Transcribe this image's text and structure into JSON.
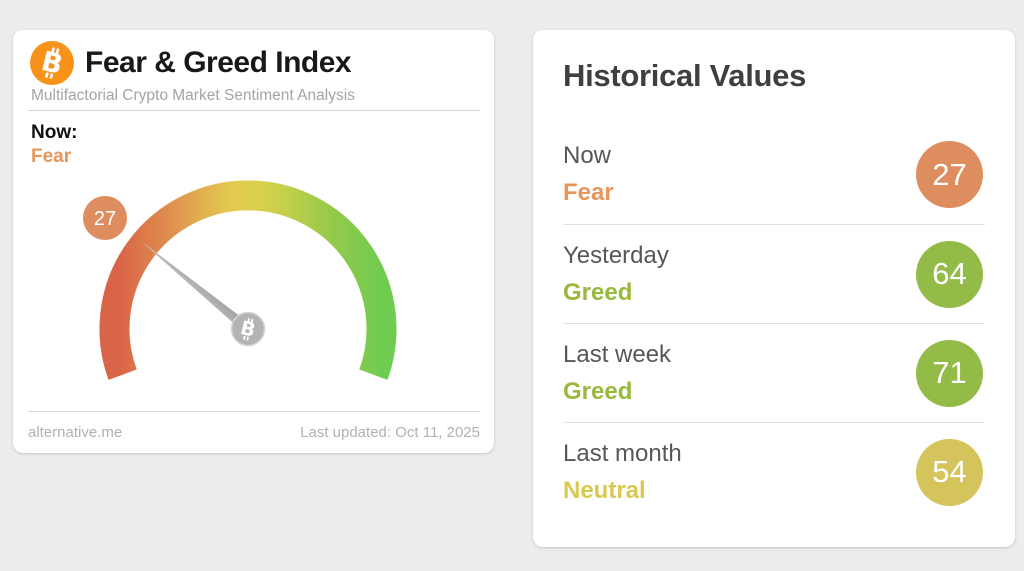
{
  "gauge_card": {
    "title": "Fear & Greed Index",
    "subtitle": "Multifactorial Crypto Market Sentiment Analysis",
    "now_label": "Now:",
    "now_sentiment": "Fear",
    "now_sentiment_class": "now-sentiment tone-orange-text",
    "gauge_badge_value": "27",
    "gauge_badge_color": "#de8e5e",
    "source": "alternative.me",
    "last_updated": "Last updated: Oct 11, 2025"
  },
  "historical_card": {
    "title": "Historical Values",
    "rows": [
      {
        "label": "Now",
        "sentiment": "Fear",
        "value": "27",
        "sentiment_class": "hv-sentiment tone-orange-text",
        "badge_class": "hv-badge tone-orange-bg"
      },
      {
        "label": "Yesterday",
        "sentiment": "Greed",
        "value": "64",
        "sentiment_class": "hv-sentiment tone-green-text",
        "badge_class": "hv-badge tone-green-bg"
      },
      {
        "label": "Last week",
        "sentiment": "Greed",
        "value": "71",
        "sentiment_class": "hv-sentiment tone-green-text",
        "badge_class": "hv-badge tone-green-bg"
      },
      {
        "label": "Last month",
        "sentiment": "Neutral",
        "value": "54",
        "sentiment_class": "hv-sentiment tone-yellow-text",
        "badge_class": "hv-badge tone-yellow-bg"
      }
    ]
  },
  "colors": {
    "bitcoin_orange": "#f7931a",
    "fear_orange_text": "#e6965a",
    "fear_orange_badge": "#de8e5e",
    "greed_green_text": "#99b93d",
    "greed_green_badge": "#93bb48",
    "neutral_yellow_text": "#dbc84f",
    "neutral_yellow_badge": "#d5c45b",
    "needle_gray": "#a8a8a8",
    "gauge_gradient": [
      "#da6448",
      "#df8b4e",
      "#e3c951",
      "#c3cf4b",
      "#93c94a",
      "#70cc51"
    ]
  },
  "chart_data": {
    "type": "gauge",
    "title": "Fear & Greed Index",
    "value": 27,
    "min": 0,
    "max": 100,
    "sentiment": "Fear",
    "arc_span_degrees": 220,
    "color_scale": "red (0, fear) through yellow (50, neutral) to green (100, greed)",
    "historical": [
      {
        "period": "Now",
        "sentiment": "Fear",
        "value": 27
      },
      {
        "period": "Yesterday",
        "sentiment": "Greed",
        "value": 64
      },
      {
        "period": "Last week",
        "sentiment": "Greed",
        "value": 71
      },
      {
        "period": "Last month",
        "sentiment": "Neutral",
        "value": 54
      }
    ]
  }
}
